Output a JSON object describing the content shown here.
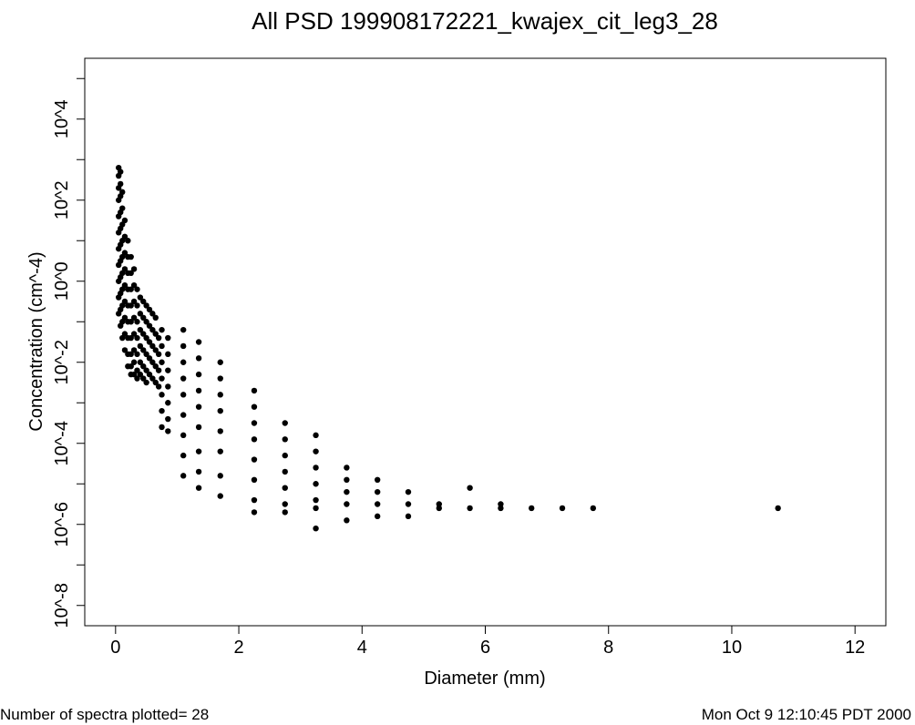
{
  "title": "All PSD 199908172221_kwajex_cit_leg3_28",
  "footer": {
    "left": "Number of spectra plotted= 28",
    "right": "Mon Oct  9 12:10:45 PDT 2000"
  },
  "chart_data": {
    "type": "scatter",
    "title": "All PSD 199908172221_kwajex_cit_leg3_28",
    "xlabel": "Diameter (mm)",
    "ylabel": "Concentration (cm^-4)",
    "xlim": [
      -0.5,
      12.5
    ],
    "ylim": [
      -8.5,
      5.5
    ],
    "y_scale": "log10",
    "x_ticks": [
      0,
      2,
      4,
      6,
      8,
      10,
      12
    ],
    "x_tick_labels": [
      "0",
      "2",
      "4",
      "6",
      "8",
      "10",
      "12"
    ],
    "y_ticks": [
      -8,
      -6,
      -4,
      -2,
      0,
      2,
      4
    ],
    "y_tick_labels": [
      "10^-8",
      "10^-6",
      "10^-4",
      "10^-2",
      "10^0",
      "10^2",
      "10^4"
    ],
    "grid": false,
    "marker_color": "#000000",
    "series": [
      {
        "points": [
          [
            0.05,
            2.8
          ],
          [
            0.05,
            2.6
          ],
          [
            0.05,
            2.3
          ],
          [
            0.05,
            2.0
          ],
          [
            0.05,
            1.6
          ],
          [
            0.05,
            1.2
          ],
          [
            0.05,
            0.8
          ],
          [
            0.05,
            0.4
          ],
          [
            0.05,
            0.0
          ],
          [
            0.05,
            -0.4
          ],
          [
            0.05,
            -0.8
          ],
          [
            0.08,
            2.7
          ],
          [
            0.08,
            2.4
          ],
          [
            0.08,
            2.1
          ],
          [
            0.08,
            1.7
          ],
          [
            0.08,
            1.3
          ],
          [
            0.08,
            0.9
          ],
          [
            0.08,
            0.5
          ],
          [
            0.08,
            0.1
          ],
          [
            0.08,
            -0.3
          ],
          [
            0.08,
            -0.7
          ],
          [
            0.08,
            -1.1
          ],
          [
            0.11,
            2.2
          ],
          [
            0.11,
            1.8
          ],
          [
            0.11,
            1.4
          ],
          [
            0.11,
            1.0
          ],
          [
            0.11,
            0.6
          ],
          [
            0.11,
            0.2
          ],
          [
            0.11,
            -0.2
          ],
          [
            0.11,
            -0.6
          ],
          [
            0.11,
            -1.0
          ],
          [
            0.11,
            -1.4
          ],
          [
            0.15,
            1.5
          ],
          [
            0.15,
            1.1
          ],
          [
            0.15,
            0.7
          ],
          [
            0.15,
            0.3
          ],
          [
            0.15,
            -0.1
          ],
          [
            0.15,
            -0.5
          ],
          [
            0.15,
            -0.9
          ],
          [
            0.15,
            -1.3
          ],
          [
            0.15,
            -1.7
          ],
          [
            0.2,
            1.0
          ],
          [
            0.2,
            0.6
          ],
          [
            0.2,
            0.2
          ],
          [
            0.2,
            -0.2
          ],
          [
            0.2,
            -0.6
          ],
          [
            0.2,
            -1.0
          ],
          [
            0.2,
            -1.4
          ],
          [
            0.2,
            -1.8
          ],
          [
            0.2,
            -2.1
          ],
          [
            0.25,
            0.6
          ],
          [
            0.25,
            0.2
          ],
          [
            0.25,
            -0.2
          ],
          [
            0.25,
            -0.6
          ],
          [
            0.25,
            -1.0
          ],
          [
            0.25,
            -1.4
          ],
          [
            0.25,
            -1.8
          ],
          [
            0.25,
            -2.1
          ],
          [
            0.25,
            -2.3
          ],
          [
            0.3,
            0.3
          ],
          [
            0.3,
            -0.1
          ],
          [
            0.3,
            -0.5
          ],
          [
            0.3,
            -0.9
          ],
          [
            0.3,
            -1.3
          ],
          [
            0.3,
            -1.7
          ],
          [
            0.3,
            -2.0
          ],
          [
            0.3,
            -2.3
          ],
          [
            0.35,
            -0.2
          ],
          [
            0.35,
            -0.6
          ],
          [
            0.35,
            -1.0
          ],
          [
            0.35,
            -1.4
          ],
          [
            0.35,
            -1.8
          ],
          [
            0.35,
            -2.2
          ],
          [
            0.35,
            -2.4
          ],
          [
            0.4,
            -0.4
          ],
          [
            0.4,
            -0.8
          ],
          [
            0.4,
            -1.2
          ],
          [
            0.4,
            -1.6
          ],
          [
            0.4,
            -2.0
          ],
          [
            0.4,
            -2.3
          ],
          [
            0.45,
            -0.5
          ],
          [
            0.45,
            -0.9
          ],
          [
            0.45,
            -1.3
          ],
          [
            0.45,
            -1.7
          ],
          [
            0.45,
            -2.1
          ],
          [
            0.45,
            -2.4
          ],
          [
            0.5,
            -0.6
          ],
          [
            0.5,
            -1.0
          ],
          [
            0.5,
            -1.4
          ],
          [
            0.5,
            -1.8
          ],
          [
            0.5,
            -2.2
          ],
          [
            0.5,
            -2.5
          ],
          [
            0.55,
            -0.7
          ],
          [
            0.55,
            -1.1
          ],
          [
            0.55,
            -1.5
          ],
          [
            0.55,
            -1.9
          ],
          [
            0.55,
            -2.3
          ],
          [
            0.6,
            -0.8
          ],
          [
            0.6,
            -1.2
          ],
          [
            0.6,
            -1.6
          ],
          [
            0.6,
            -2.0
          ],
          [
            0.6,
            -2.4
          ],
          [
            0.65,
            -0.9
          ],
          [
            0.65,
            -1.3
          ],
          [
            0.65,
            -1.7
          ],
          [
            0.65,
            -2.1
          ],
          [
            0.65,
            -2.5
          ],
          [
            0.7,
            -1.4
          ],
          [
            0.7,
            -1.8
          ],
          [
            0.7,
            -2.2
          ],
          [
            0.7,
            -2.6
          ],
          [
            0.75,
            -1.2
          ],
          [
            0.75,
            -1.6
          ],
          [
            0.75,
            -2.0
          ],
          [
            0.75,
            -2.4
          ],
          [
            0.75,
            -2.8
          ],
          [
            0.75,
            -3.2
          ],
          [
            0.75,
            -3.6
          ],
          [
            0.85,
            -1.4
          ],
          [
            0.85,
            -1.8
          ],
          [
            0.85,
            -2.2
          ],
          [
            0.85,
            -2.6
          ],
          [
            0.85,
            -3.0
          ],
          [
            0.85,
            -3.4
          ],
          [
            0.85,
            -3.7
          ],
          [
            1.1,
            -1.2
          ],
          [
            1.1,
            -1.6
          ],
          [
            1.1,
            -2.0
          ],
          [
            1.1,
            -2.4
          ],
          [
            1.1,
            -2.8
          ],
          [
            1.1,
            -3.3
          ],
          [
            1.1,
            -3.8
          ],
          [
            1.1,
            -4.3
          ],
          [
            1.1,
            -4.8
          ],
          [
            1.35,
            -1.5
          ],
          [
            1.35,
            -1.9
          ],
          [
            1.35,
            -2.3
          ],
          [
            1.35,
            -2.7
          ],
          [
            1.35,
            -3.1
          ],
          [
            1.35,
            -3.6
          ],
          [
            1.35,
            -4.2
          ],
          [
            1.35,
            -4.7
          ],
          [
            1.35,
            -5.1
          ],
          [
            1.7,
            -2.0
          ],
          [
            1.7,
            -2.4
          ],
          [
            1.7,
            -2.8
          ],
          [
            1.7,
            -3.2
          ],
          [
            1.7,
            -3.7
          ],
          [
            1.7,
            -4.2
          ],
          [
            1.7,
            -4.8
          ],
          [
            1.7,
            -5.3
          ],
          [
            2.25,
            -2.7
          ],
          [
            2.25,
            -3.1
          ],
          [
            2.25,
            -3.5
          ],
          [
            2.25,
            -3.9
          ],
          [
            2.25,
            -4.4
          ],
          [
            2.25,
            -4.9
          ],
          [
            2.25,
            -5.4
          ],
          [
            2.25,
            -5.7
          ],
          [
            2.75,
            -3.5
          ],
          [
            2.75,
            -3.9
          ],
          [
            2.75,
            -4.3
          ],
          [
            2.75,
            -4.7
          ],
          [
            2.75,
            -5.1
          ],
          [
            2.75,
            -5.5
          ],
          [
            2.75,
            -5.7
          ],
          [
            3.25,
            -3.8
          ],
          [
            3.25,
            -4.2
          ],
          [
            3.25,
            -4.6
          ],
          [
            3.25,
            -5.0
          ],
          [
            3.25,
            -5.4
          ],
          [
            3.25,
            -5.6
          ],
          [
            3.25,
            -6.1
          ],
          [
            3.75,
            -4.6
          ],
          [
            3.75,
            -4.9
          ],
          [
            3.75,
            -5.2
          ],
          [
            3.75,
            -5.5
          ],
          [
            3.75,
            -5.9
          ],
          [
            4.25,
            -4.9
          ],
          [
            4.25,
            -5.2
          ],
          [
            4.25,
            -5.5
          ],
          [
            4.25,
            -5.8
          ],
          [
            4.75,
            -5.2
          ],
          [
            4.75,
            -5.5
          ],
          [
            4.75,
            -5.8
          ],
          [
            5.25,
            -5.5
          ],
          [
            5.25,
            -5.6
          ],
          [
            5.75,
            -5.1
          ],
          [
            5.75,
            -5.6
          ],
          [
            6.25,
            -5.5
          ],
          [
            6.25,
            -5.6
          ],
          [
            6.75,
            -5.6
          ],
          [
            7.25,
            -5.6
          ],
          [
            7.75,
            -5.6
          ],
          [
            10.75,
            -5.6
          ]
        ]
      }
    ]
  }
}
